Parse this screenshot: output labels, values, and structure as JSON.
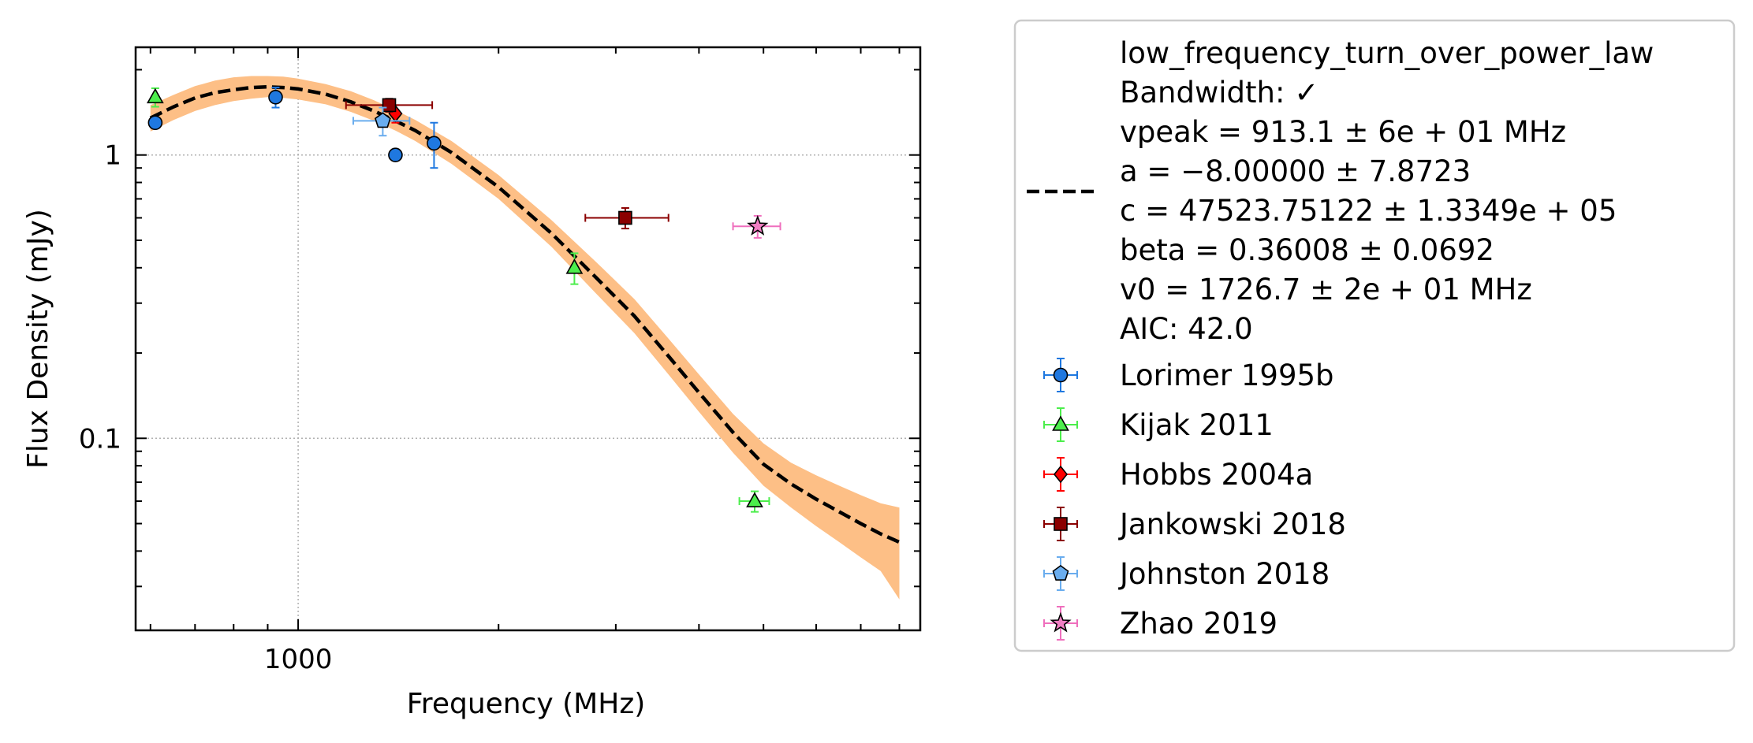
{
  "chart_data": {
    "type": "scatter",
    "xlabel": "Frequency (MHz)",
    "ylabel": "Flux Density (mJy)",
    "x_scale": "log",
    "y_scale": "log",
    "xlim": [
      570,
      8600
    ],
    "ylim": [
      0.021,
      2.4
    ],
    "x_tick_labels": [
      {
        "value": 1000,
        "label": "1000"
      }
    ],
    "y_tick_labels": [
      {
        "value": 1,
        "label": "1"
      },
      {
        "value": 0.1,
        "label": "0.1"
      }
    ],
    "grid": true,
    "legend_position": "outside-right",
    "fit": {
      "name": "low_frequency_turn_over_power_law",
      "label_lines": [
        "low_frequency_turn_over_power_law",
        "Bandwidth: ✓",
        "vpeak = 913.1 ± 6e + 01 MHz",
        "a = −8.00000 ± 7.8723",
        "c = 47523.75122 ± 1.3349e + 05",
        "beta = 0.36008 ± 0.0692",
        "v0 = 1726.7 ± 2e + 01 MHz",
        "AIC: 42.0"
      ],
      "line_color": "#000000",
      "band_color": "#fdbf86",
      "x": [
        600,
        650,
        700,
        750,
        800,
        850,
        900,
        950,
        1000,
        1100,
        1200,
        1300,
        1400,
        1500,
        1700,
        2000,
        2400,
        2800,
        3200,
        3600,
        4000,
        4500,
        5000,
        5500,
        6000,
        6500,
        7000,
        7500,
        8000
      ],
      "y": [
        1.35,
        1.48,
        1.59,
        1.66,
        1.7,
        1.73,
        1.74,
        1.73,
        1.71,
        1.64,
        1.54,
        1.43,
        1.32,
        1.22,
        1.02,
        0.77,
        0.53,
        0.37,
        0.27,
        0.195,
        0.145,
        0.105,
        0.081,
        0.069,
        0.061,
        0.055,
        0.05,
        0.046,
        0.043
      ],
      "y_lower": [
        1.21,
        1.33,
        1.43,
        1.5,
        1.55,
        1.58,
        1.6,
        1.59,
        1.57,
        1.51,
        1.42,
        1.32,
        1.22,
        1.12,
        0.93,
        0.7,
        0.475,
        0.325,
        0.235,
        0.168,
        0.124,
        0.089,
        0.068,
        0.057,
        0.049,
        0.043,
        0.038,
        0.034,
        0.027
      ],
      "y_upper": [
        1.5,
        1.63,
        1.75,
        1.83,
        1.88,
        1.9,
        1.9,
        1.89,
        1.86,
        1.78,
        1.68,
        1.56,
        1.44,
        1.33,
        1.12,
        0.85,
        0.59,
        0.42,
        0.31,
        0.225,
        0.168,
        0.122,
        0.096,
        0.082,
        0.074,
        0.068,
        0.063,
        0.059,
        0.057
      ]
    },
    "series": [
      {
        "name": "Lorimer 1995b",
        "marker": "circle",
        "color": "#1f78e0",
        "ecolor": "#1f78e0",
        "points": [
          {
            "x": 610,
            "y": 1.3,
            "yerr": 0,
            "xerr": 0
          },
          {
            "x": 925,
            "y": 1.6,
            "yerr": 0.13,
            "xerr": 0
          },
          {
            "x": 1400,
            "y": 1.0,
            "yerr": 0,
            "xerr": 0
          },
          {
            "x": 1600,
            "y": 1.1,
            "yerr": 0.2,
            "xerr": 0
          }
        ]
      },
      {
        "name": "Kijak 2011",
        "marker": "triangle",
        "color": "#4cee4c",
        "ecolor": "#4cee4c",
        "points": [
          {
            "x": 610,
            "y": 1.6,
            "yerr": 0.12,
            "xerr": 0
          },
          {
            "x": 2600,
            "y": 0.4,
            "yerr": 0.05,
            "xerr": 0
          },
          {
            "x": 4850,
            "y": 0.06,
            "yerr": 0.005,
            "xerr": 250
          }
        ]
      },
      {
        "name": "Hobbs 2004a",
        "marker": "diamond",
        "color": "#ff0000",
        "ecolor": "#ff0000",
        "points": [
          {
            "x": 1400,
            "y": 1.4,
            "yerr": 0.1,
            "xerr": 0
          }
        ]
      },
      {
        "name": "Jankowski 2018",
        "marker": "square",
        "color": "#8b0000",
        "ecolor": "#8b0000",
        "points": [
          {
            "x": 1370,
            "y": 1.5,
            "yerr": 0.08,
            "xerr": [
              190,
              220
            ]
          },
          {
            "x": 3100,
            "y": 0.6,
            "yerr": 0.05,
            "xerr": [
              400,
              500
            ]
          }
        ]
      },
      {
        "name": "Johnston 2018",
        "marker": "pentagon",
        "color": "#6aadee",
        "ecolor": "#6aadee",
        "points": [
          {
            "x": 1340,
            "y": 1.32,
            "yerr": 0.15,
            "xerr": [
              130,
              130
            ]
          }
        ]
      },
      {
        "name": "Zhao 2019",
        "marker": "star",
        "color": "#f27fc4",
        "ecolor": "#ef6fbd",
        "points": [
          {
            "x": 4900,
            "y": 0.56,
            "yerr": 0.05,
            "xerr": 400
          }
        ]
      }
    ]
  }
}
